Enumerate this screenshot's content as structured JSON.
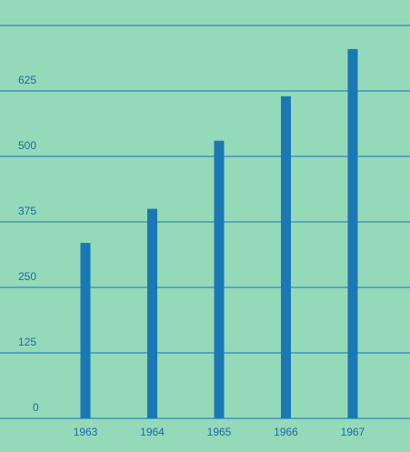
{
  "colors": {
    "background": "#95dab8",
    "bar": "#1a78b4",
    "grid": "#2f86c0",
    "text": "#1a6aa8"
  },
  "chart_data": {
    "type": "bar",
    "title": "",
    "xlabel": "",
    "ylabel": "",
    "categories": [
      "1963",
      "1964",
      "1965",
      "1966",
      "1967"
    ],
    "values": [
      335,
      400,
      530,
      615,
      705
    ],
    "ylim": [
      0,
      750
    ],
    "yticks": [
      0,
      125,
      250,
      375,
      500,
      625
    ],
    "ytick_labels": [
      "0",
      "125",
      "250",
      "375",
      "500",
      "625"
    ],
    "grid": true,
    "legend": "none"
  }
}
